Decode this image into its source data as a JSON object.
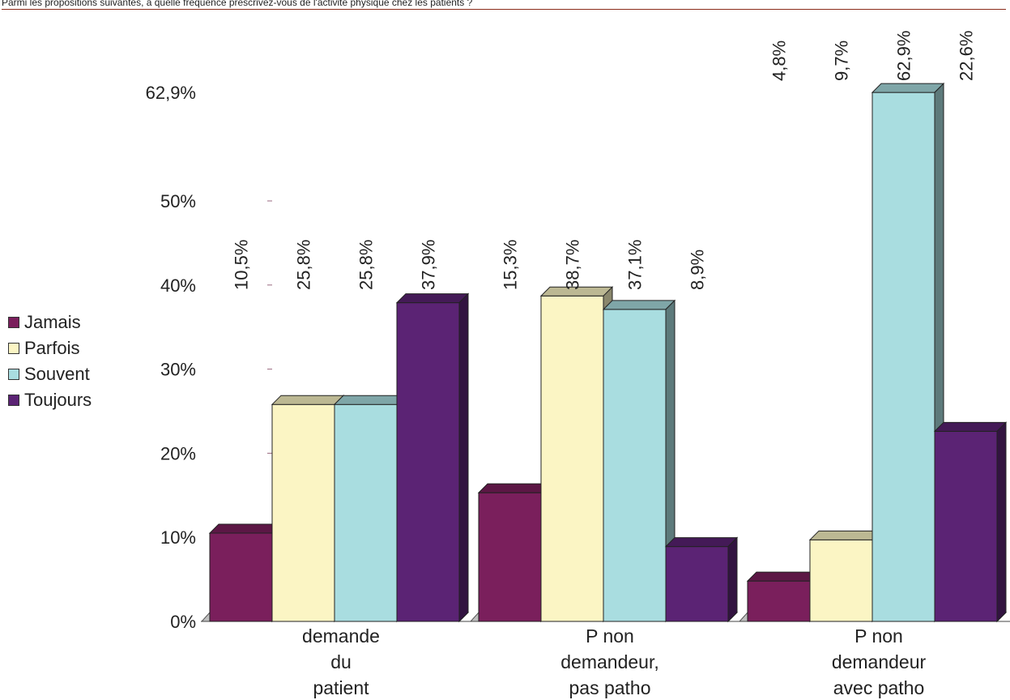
{
  "title": "Parmi les propositions suivantes, à quelle fréquence prescrivez-vous de l'activité physique chez les patients ?",
  "chart_data": {
    "type": "bar",
    "categories": [
      [
        "demande",
        "du",
        "patient"
      ],
      [
        "P non",
        "demandeur,",
        "pas patho"
      ],
      [
        "P non",
        "demandeur",
        "avec patho"
      ]
    ],
    "series": [
      {
        "name": "Jamais",
        "values": [
          10.5,
          15.3,
          4.8
        ],
        "labels": [
          "10,5%",
          "15,3%",
          "4,8%"
        ],
        "color": "#7a1f5c"
      },
      {
        "name": "Parfois",
        "values": [
          25.8,
          38.7,
          9.7
        ],
        "labels": [
          "25,8%",
          "38,7%",
          "9,7%"
        ],
        "color": "#fbf5c4"
      },
      {
        "name": "Souvent",
        "values": [
          25.8,
          37.1,
          62.9
        ],
        "labels": [
          "25,8%",
          "37,1%",
          "62,9%"
        ],
        "color": "#a9dde0"
      },
      {
        "name": "Toujours",
        "values": [
          37.9,
          8.9,
          22.6
        ],
        "labels": [
          "37,9%",
          "8,9%",
          "22,6%"
        ],
        "color": "#5b2374"
      }
    ],
    "y_ticks": [
      0,
      10,
      20,
      30,
      40,
      50,
      62.9
    ],
    "y_tick_labels": [
      "0%",
      "10%",
      "20%",
      "30%",
      "40%",
      "50%",
      "62,9%"
    ],
    "ylim": [
      0,
      62.9
    ],
    "legend_position": "left",
    "grid": false
  }
}
